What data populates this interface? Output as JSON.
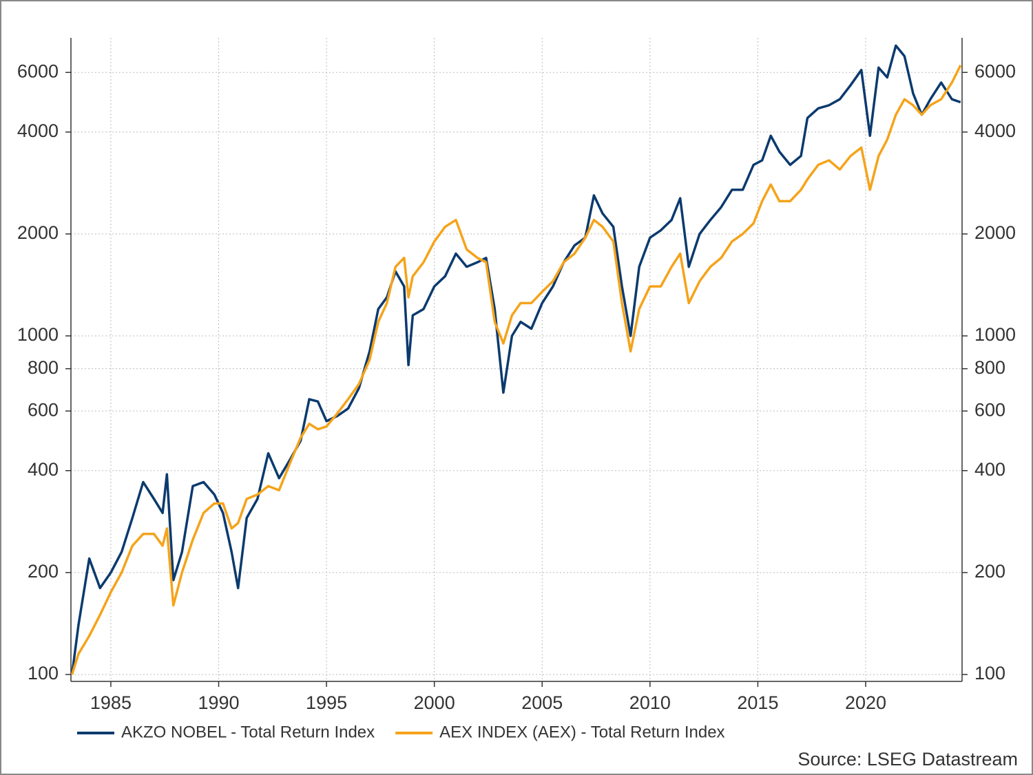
{
  "chart_data": {
    "type": "line",
    "source": "Source: LSEG Datastream",
    "x": [
      1983.2,
      1983.5,
      1984.0,
      1984.5,
      1985.0,
      1985.5,
      1986.0,
      1986.5,
      1987.0,
      1987.4,
      1987.6,
      1987.9,
      1988.3,
      1988.8,
      1989.3,
      1989.8,
      1990.2,
      1990.6,
      1990.9,
      1991.3,
      1991.8,
      1992.3,
      1992.8,
      1993.3,
      1993.8,
      1994.2,
      1994.6,
      1995.0,
      1995.5,
      1996.0,
      1996.5,
      1997.0,
      1997.4,
      1997.8,
      1998.2,
      1998.6,
      1998.8,
      1999.0,
      1999.5,
      2000.0,
      2000.5,
      2001.0,
      2001.5,
      2002.0,
      2002.4,
      2002.8,
      2003.2,
      2003.6,
      2004.0,
      2004.5,
      2005.0,
      2005.5,
      2006.0,
      2006.5,
      2007.0,
      2007.4,
      2007.8,
      2008.3,
      2008.7,
      2009.1,
      2009.5,
      2010.0,
      2010.5,
      2011.0,
      2011.4,
      2011.8,
      2012.3,
      2012.8,
      2013.3,
      2013.8,
      2014.3,
      2014.8,
      2015.2,
      2015.6,
      2016.0,
      2016.5,
      2017.0,
      2017.3,
      2017.8,
      2018.3,
      2018.8,
      2019.3,
      2019.8,
      2020.2,
      2020.6,
      2021.0,
      2021.4,
      2021.8,
      2022.2,
      2022.6,
      2023.0,
      2023.5,
      2024.0,
      2024.4
    ],
    "series": [
      {
        "name": "AKZO NOBEL - Total Return Index",
        "color": "#0b3a6e",
        "values": [
          100,
          140,
          220,
          180,
          200,
          230,
          290,
          370,
          330,
          300,
          390,
          190,
          230,
          360,
          370,
          340,
          300,
          230,
          180,
          290,
          330,
          450,
          380,
          430,
          490,
          650,
          640,
          560,
          580,
          610,
          700,
          900,
          1200,
          1300,
          1550,
          1400,
          820,
          1150,
          1200,
          1400,
          1500,
          1750,
          1600,
          1650,
          1700,
          1200,
          680,
          1000,
          1100,
          1050,
          1250,
          1400,
          1650,
          1850,
          1950,
          2600,
          2300,
          2100,
          1400,
          1000,
          1600,
          1950,
          2050,
          2200,
          2550,
          1600,
          2000,
          2200,
          2400,
          2700,
          2700,
          3200,
          3300,
          3900,
          3500,
          3200,
          3400,
          4400,
          4700,
          4800,
          5000,
          5500,
          6100,
          3900,
          6200,
          5800,
          7200,
          6700,
          5200,
          4500,
          5000,
          5600,
          5000,
          4900
        ]
      },
      {
        "name": "AEX INDEX (AEX) - Total Return Index",
        "color": "#f5a31a",
        "values": [
          100,
          115,
          130,
          150,
          175,
          200,
          240,
          260,
          260,
          240,
          270,
          160,
          200,
          250,
          300,
          320,
          320,
          270,
          280,
          330,
          340,
          360,
          350,
          420,
          500,
          550,
          530,
          540,
          590,
          650,
          720,
          850,
          1100,
          1250,
          1600,
          1700,
          1300,
          1500,
          1650,
          1900,
          2100,
          2200,
          1800,
          1700,
          1650,
          1100,
          950,
          1150,
          1250,
          1250,
          1350,
          1450,
          1650,
          1750,
          1950,
          2200,
          2100,
          1900,
          1250,
          900,
          1200,
          1400,
          1400,
          1600,
          1750,
          1250,
          1450,
          1600,
          1700,
          1900,
          2000,
          2150,
          2500,
          2800,
          2500,
          2500,
          2700,
          2900,
          3200,
          3300,
          3100,
          3400,
          3600,
          2700,
          3400,
          3800,
          4500,
          5000,
          4800,
          4500,
          4800,
          5000,
          5600,
          6300
        ]
      }
    ],
    "xlim": [
      1983.15,
      2024.47
    ],
    "xticks": [
      1985,
      1990,
      1995,
      2000,
      2005,
      2010,
      2015,
      2020
    ],
    "ylim": [
      95.4,
      7590
    ],
    "yticks": [
      100,
      200,
      400,
      600,
      800,
      1000,
      2000,
      4000,
      6000
    ],
    "log_scale": true,
    "grid": true,
    "legend": "bottom"
  }
}
